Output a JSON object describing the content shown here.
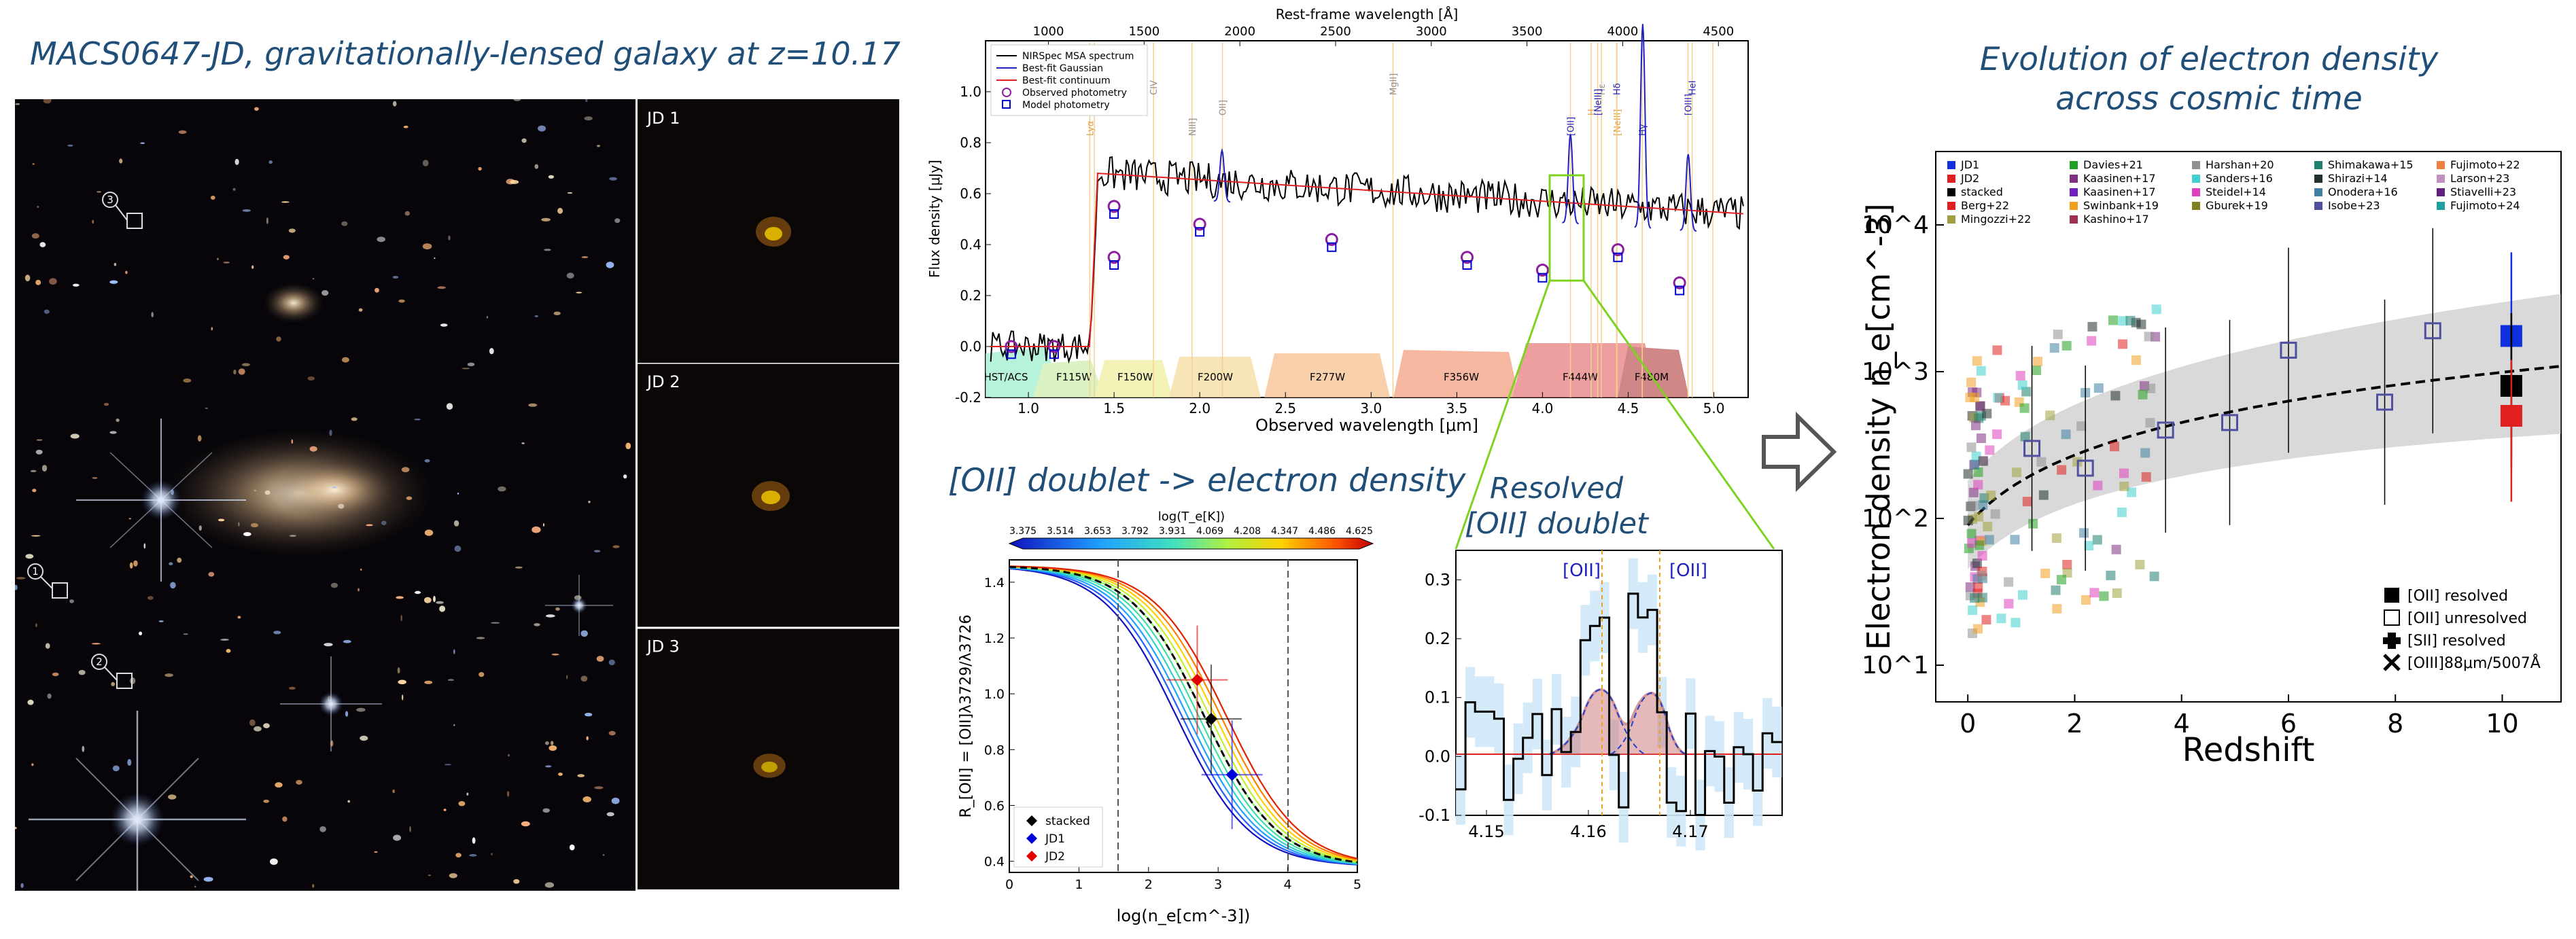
{
  "titles": {
    "left": "MACS0647-JD, gravitationally-lensed galaxy at z=10.17",
    "middle": "[OII] doublet -> electron density",
    "zoom": [
      "Resolved",
      "[OII] doublet"
    ],
    "right": [
      "Evolution of electron density",
      "across cosmic time"
    ]
  },
  "image_panel": {
    "markers": [
      "1",
      "2",
      "3"
    ],
    "thumbs": [
      "JD 1",
      "JD 2",
      "JD 3"
    ]
  },
  "spectrum": {
    "top_axis_label": "Rest-frame wavelength [Å]",
    "top_ticks": [
      "1000",
      "1500",
      "2000",
      "2500",
      "3000",
      "3500",
      "4000",
      "4500"
    ],
    "xlabel": "Observed wavelength [μm]",
    "ylabel": "Flux density [μJy]",
    "x_ticks": [
      "1.0",
      "1.5",
      "2.0",
      "2.5",
      "3.0",
      "3.5",
      "4.0",
      "4.5",
      "5.0"
    ],
    "y_ticks": [
      "-0.2",
      "0.0",
      "0.2",
      "0.4",
      "0.6",
      "0.8",
      "1.0"
    ],
    "legend": [
      "NIRSpec MSA spectrum",
      "Best-fit Gaussian",
      "Best-fit continuum",
      "Observed photometry",
      "Model photometry"
    ],
    "lines": [
      "Lyα",
      "NV",
      "CIV",
      "NIII]",
      "OII]",
      "MgII]",
      "[OII]",
      "H",
      "Hε",
      "[NeIII]",
      "[NeIII]",
      "Hδ",
      "Hγ",
      "[OIII]",
      "HeI"
    ],
    "filters": [
      "HST/ACS",
      "F115W",
      "F150W",
      "F200W",
      "F277W",
      "F356W",
      "F444W",
      "F480M"
    ]
  },
  "ratio_plot": {
    "colorbar_label": "log(T_e[K])",
    "colorbar_ticks": [
      "3.375",
      "3.514",
      "3.653",
      "3.792",
      "3.931",
      "4.069",
      "4.208",
      "4.347",
      "4.486",
      "4.625"
    ],
    "xlabel": "log(n_e[cm^-3])",
    "ylabel": "R_[OII] = [OII]λ3729/λ3726",
    "x_ticks": [
      "0",
      "1",
      "2",
      "3",
      "4",
      "5"
    ],
    "y_ticks": [
      "0.4",
      "0.6",
      "0.8",
      "1.0",
      "1.2",
      "1.4"
    ],
    "legend": [
      "stacked",
      "JD1",
      "JD2"
    ],
    "points": [
      {
        "name": "stacked",
        "x": 2.9,
        "y": 0.91,
        "color": "#000000"
      },
      {
        "name": "JD1",
        "x": 3.2,
        "y": 0.71,
        "color": "#0000dd"
      },
      {
        "name": "JD2",
        "x": 2.7,
        "y": 1.05,
        "color": "#e00000"
      }
    ]
  },
  "zoom_plot": {
    "labels": [
      "[OII]",
      "[OII]"
    ],
    "x_ticks": [
      "4.15",
      "4.16",
      "4.17"
    ],
    "y_ticks": [
      "-0.1",
      "0.0",
      "0.1",
      "0.2",
      "0.3"
    ]
  },
  "density_plot": {
    "xlabel": "Redshift",
    "ylabel": "Electron density n_e[cm^-3]",
    "x_ticks": [
      "0",
      "2",
      "4",
      "6",
      "8",
      "10"
    ],
    "y_ticks": [
      "10^1",
      "10^2",
      "10^3",
      "10^4"
    ],
    "legend_cols": [
      [
        "JD1",
        "JD2",
        "stacked",
        "Berg+22",
        "Mingozzi+22"
      ],
      [
        "Davies+21",
        "Kaasinen+17",
        "Kaasinen+17",
        "Swinbank+19",
        "Kashino+17"
      ],
      [
        "Harshan+20",
        "Sanders+16",
        "Steidel+14",
        "Gburek+19"
      ],
      [
        "Shimakawa+15",
        "Shirazi+14",
        "Onodera+16",
        "Isobe+23"
      ],
      [
        "Fujimoto+22",
        "Larson+23",
        "Stiavelli+23",
        "Fujimoto+24"
      ]
    ],
    "legend_colors": [
      [
        "#1030e0",
        "#e02020",
        "#000000",
        "#e02020",
        "#a0a040"
      ],
      [
        "#20a020",
        "#803080",
        "#7020c0",
        "#f0a020",
        "#a03050"
      ],
      [
        "#909090",
        "#40d0d0",
        "#e040c0",
        "#808020"
      ],
      [
        "#208070",
        "#203030",
        "#4080a0",
        "#5050a0"
      ],
      [
        "#f08040",
        "#c090c0",
        "#602080",
        "#20a0a0"
      ]
    ],
    "marker_legend": [
      "[OII] resolved",
      "[OII] unresolved",
      "[SII] resolved",
      "[OIII]88μm/5007Å"
    ],
    "main_points": [
      {
        "name": "JD1",
        "z": 10.17,
        "ne": 1750,
        "lo": 250,
        "hi": 6500,
        "color": "#1030e0"
      },
      {
        "name": "stacked",
        "z": 10.17,
        "ne": 800,
        "lo": 220,
        "hi": 2500,
        "color": "#000000"
      },
      {
        "name": "JD2",
        "z": 10.17,
        "ne": 500,
        "lo": 130,
        "hi": 1200,
        "color": "#e02020"
      }
    ]
  },
  "arrow": {
    "name": "right-arrow"
  }
}
